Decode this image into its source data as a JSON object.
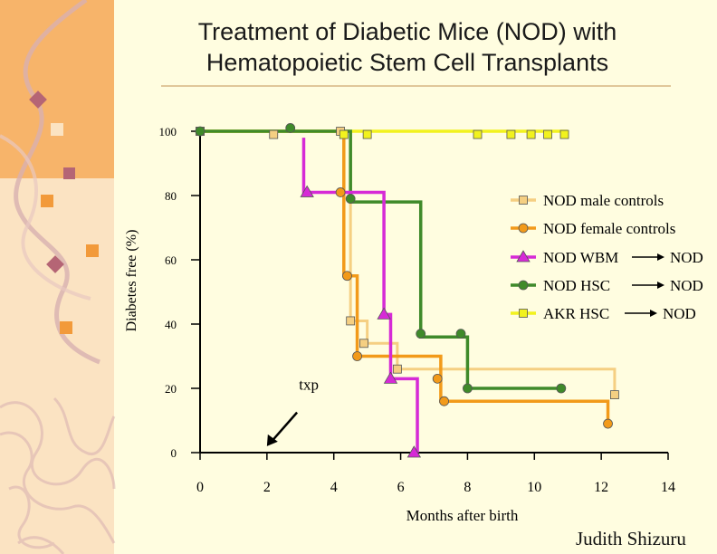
{
  "title_line1": "Treatment of Diabetic Mice (NOD) with",
  "title_line2": "Hematopoietic Stem Cell Transplants",
  "credit": "Judith Shizuru",
  "colors": {
    "background": "#fffde0",
    "left_band_top": "#f7b46a",
    "left_band_bottom": "#fbe3c2",
    "nod_male": "#f5cf82",
    "nod_female": "#f29a1a",
    "nod_wbm": "#d62ad6",
    "nod_hsc": "#3f8a2a",
    "akr_hsc": "#f2f21e"
  },
  "chart_data": {
    "type": "line",
    "subtype": "kaplan-meier step plot",
    "xlabel": "Months after birth",
    "ylabel": "Diabetes free (%)",
    "xlim": [
      0,
      14
    ],
    "ylim": [
      0,
      100
    ],
    "xticks": [
      0,
      2,
      4,
      6,
      8,
      10,
      12,
      14
    ],
    "yticks": [
      0,
      20,
      40,
      60,
      80,
      100
    ],
    "legend_position": "right",
    "annotation": {
      "text": "txp",
      "arrow_to": [
        2,
        2
      ],
      "text_at": [
        3.5,
        21
      ]
    },
    "series": [
      {
        "name": "NOD male controls",
        "marker": "square",
        "color": "#f5cf82",
        "steps": [
          [
            0,
            100
          ],
          [
            4.5,
            100
          ],
          [
            4.5,
            41
          ],
          [
            5.0,
            41
          ],
          [
            5.0,
            34
          ],
          [
            5.9,
            34
          ],
          [
            5.9,
            26
          ],
          [
            12.4,
            26
          ],
          [
            12.4,
            17
          ]
        ],
        "markers": [
          [
            0,
            100
          ],
          [
            2.2,
            99
          ],
          [
            4.2,
            100
          ],
          [
            4.5,
            41
          ],
          [
            4.9,
            34
          ],
          [
            5.9,
            26
          ],
          [
            12.4,
            18
          ]
        ]
      },
      {
        "name": "NOD female controls",
        "marker": "circle",
        "color": "#f29a1a",
        "steps": [
          [
            0,
            100
          ],
          [
            4.3,
            100
          ],
          [
            4.3,
            55
          ],
          [
            4.7,
            55
          ],
          [
            4.7,
            30
          ],
          [
            7.2,
            30
          ],
          [
            7.2,
            16
          ],
          [
            12.2,
            16
          ],
          [
            12.2,
            9
          ]
        ],
        "markers": [
          [
            4.2,
            81
          ],
          [
            4.4,
            55
          ],
          [
            4.7,
            30
          ],
          [
            7.1,
            23
          ],
          [
            7.3,
            16
          ],
          [
            12.2,
            9
          ]
        ]
      },
      {
        "name": "NOD WBM",
        "name_target": "NOD",
        "marker": "triangle",
        "color": "#d62ad6",
        "steps": [
          [
            3.1,
            98
          ],
          [
            3.1,
            81
          ],
          [
            5.5,
            81
          ],
          [
            5.5,
            43
          ],
          [
            5.7,
            43
          ],
          [
            5.7,
            23
          ],
          [
            6.5,
            23
          ],
          [
            6.5,
            0
          ]
        ],
        "markers": [
          [
            3.2,
            81
          ],
          [
            5.5,
            43
          ],
          [
            5.7,
            23
          ],
          [
            6.4,
            0
          ]
        ]
      },
      {
        "name": "NOD HSC",
        "name_target": "NOD",
        "marker": "circle",
        "color": "#3f8a2a",
        "steps": [
          [
            0,
            100
          ],
          [
            4.5,
            100
          ],
          [
            4.5,
            78
          ],
          [
            6.6,
            78
          ],
          [
            6.6,
            36
          ],
          [
            8.0,
            36
          ],
          [
            8.0,
            20
          ],
          [
            10.8,
            20
          ]
        ],
        "markers": [
          [
            0,
            100
          ],
          [
            2.7,
            101
          ],
          [
            4.5,
            79
          ],
          [
            6.6,
            37
          ],
          [
            7.8,
            37
          ],
          [
            8.0,
            20
          ],
          [
            10.8,
            20
          ]
        ]
      },
      {
        "name": "AKR HSC",
        "name_target": "NOD",
        "marker": "square",
        "color": "#f2f21e",
        "steps": [
          [
            0,
            100
          ],
          [
            11.0,
            100
          ]
        ],
        "markers": [
          [
            0,
            100
          ],
          [
            4.3,
            99
          ],
          [
            5.0,
            99
          ],
          [
            8.3,
            99
          ],
          [
            9.3,
            99
          ],
          [
            9.9,
            99
          ],
          [
            10.4,
            99
          ],
          [
            10.9,
            99
          ]
        ]
      }
    ]
  }
}
